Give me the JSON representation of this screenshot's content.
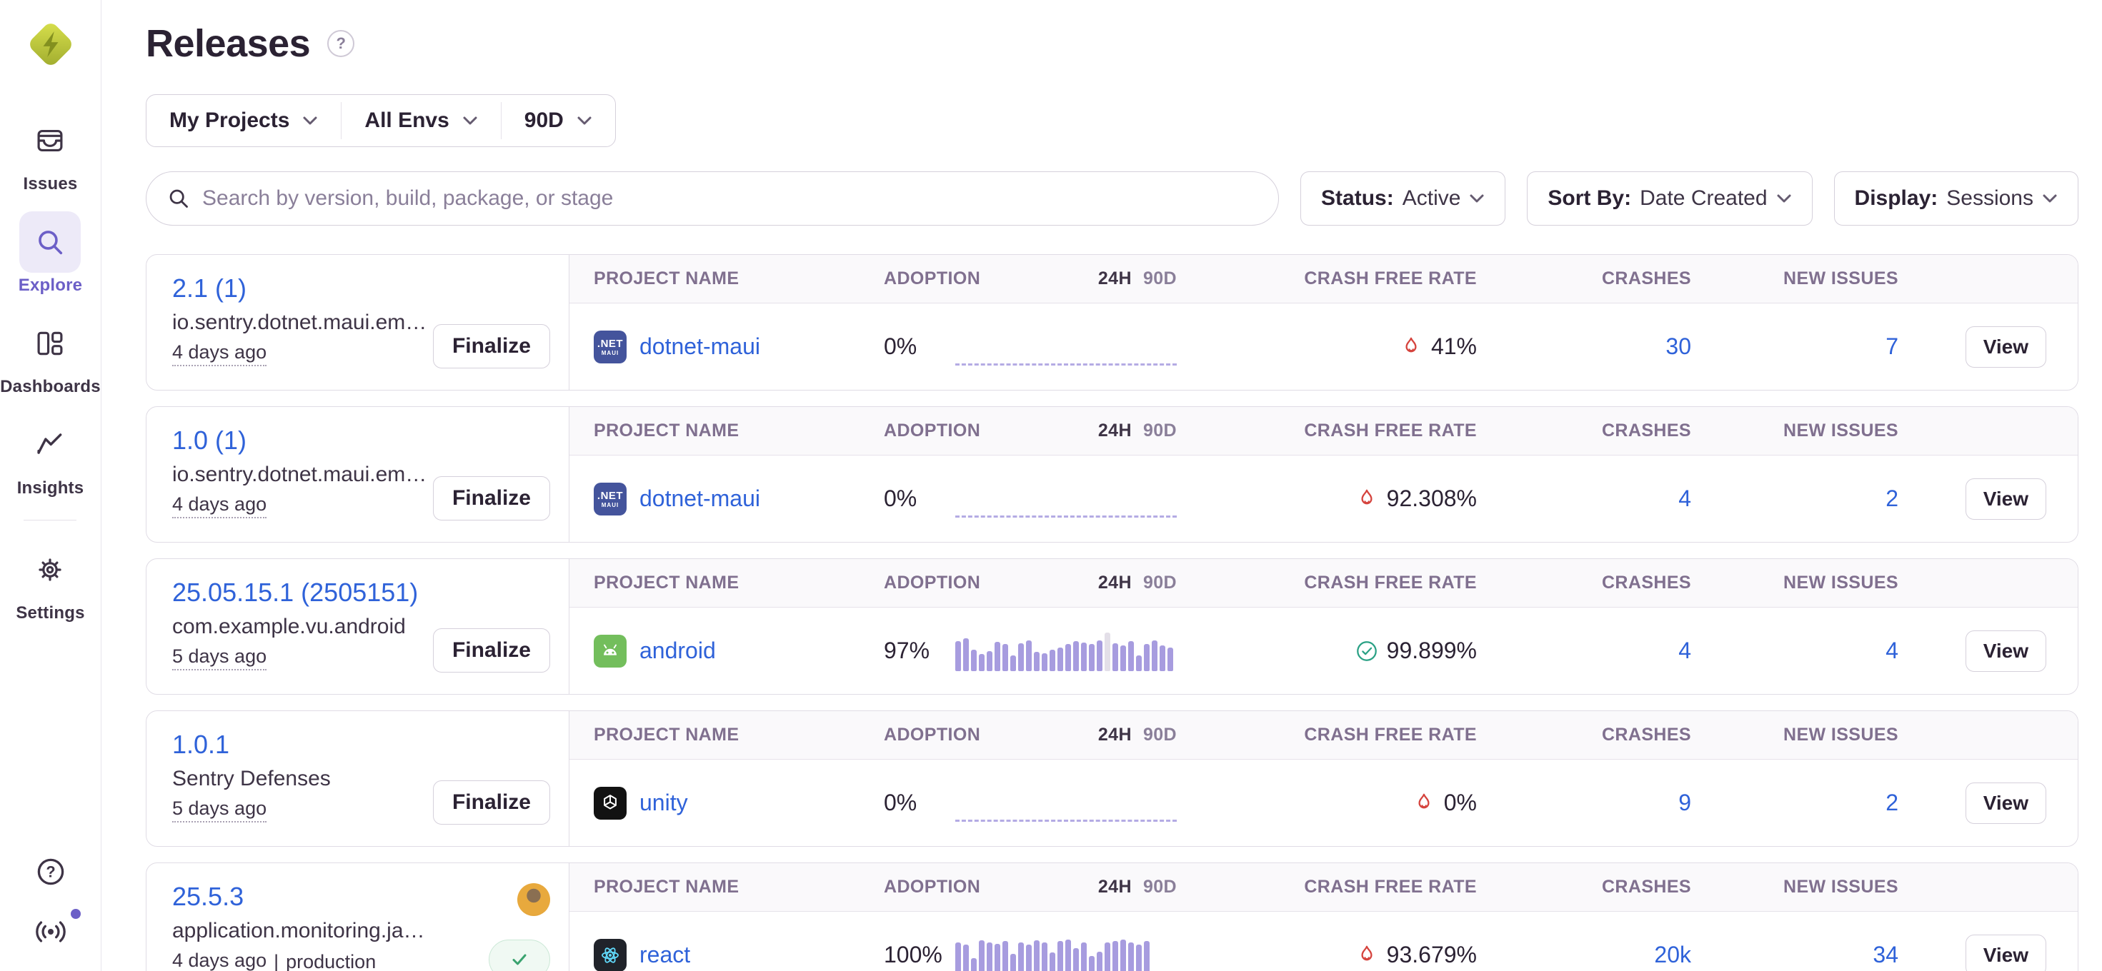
{
  "app": {
    "name": "Sentry"
  },
  "colors": {
    "accent_purple": "#6C5FC7",
    "link_blue": "#2F62D9",
    "fire_red": "#D5433D",
    "success_green": "#2BA185",
    "bar_purple": "#A79CDF",
    "border": "#E0DCE5",
    "header_text": "#80708F",
    "text_primary": "#2B2233"
  },
  "sidebar": {
    "logo_icon": "sentry-logo-icon",
    "items": [
      {
        "label": "Issues",
        "icon": "issues-icon",
        "active": false
      },
      {
        "label": "Explore",
        "icon": "search-icon",
        "active": true
      },
      {
        "label": "Dashboards",
        "icon": "dashboards-icon",
        "active": false
      },
      {
        "label": "Insights",
        "icon": "insights-icon",
        "active": false
      },
      {
        "label": "Settings",
        "icon": "gear-icon",
        "active": false
      }
    ],
    "footer_icons": [
      "help-icon",
      "whats-new-icon"
    ],
    "has_notification_dot": true
  },
  "header": {
    "title": "Releases",
    "help_icon": "question-icon"
  },
  "filters": {
    "project": "My Projects",
    "environment": "All Envs",
    "period": "90D"
  },
  "search": {
    "placeholder": "Search by version, build, package, or stage",
    "icon": "search-icon"
  },
  "controls": {
    "status": {
      "label": "Status:",
      "value": "Active"
    },
    "sort": {
      "label": "Sort By:",
      "value": "Date Created"
    },
    "display": {
      "label": "Display:",
      "value": "Sessions"
    }
  },
  "table": {
    "columns": [
      "PROJECT NAME",
      "ADOPTION",
      "24H",
      "90D",
      "CRASH FREE RATE",
      "CRASHES",
      "NEW ISSUES"
    ]
  },
  "releases": [
    {
      "version": "2.1 (1)",
      "package": "io.sentry.dotnet.maui.em…",
      "created": "4 days ago",
      "environment": null,
      "action_label": "Finalize",
      "finalized": false,
      "has_avatar": false,
      "project": {
        "name": "dotnet-maui",
        "icon": "dotnet-maui-icon"
      },
      "adoption": "0%",
      "adoption_chart": {
        "type": "dashed",
        "bars": [],
        "gray_index": -1
      },
      "crash_free_rate": {
        "value": "41%",
        "indicator": "fire"
      },
      "crashes": "30",
      "new_issues": "7",
      "view_label": "View"
    },
    {
      "version": "1.0 (1)",
      "package": "io.sentry.dotnet.maui.em…",
      "created": "4 days ago",
      "environment": null,
      "action_label": "Finalize",
      "finalized": false,
      "has_avatar": false,
      "project": {
        "name": "dotnet-maui",
        "icon": "dotnet-maui-icon"
      },
      "adoption": "0%",
      "adoption_chart": {
        "type": "dashed",
        "bars": [],
        "gray_index": -1
      },
      "crash_free_rate": {
        "value": "92.308%",
        "indicator": "fire"
      },
      "crashes": "4",
      "new_issues": "2",
      "view_label": "View"
    },
    {
      "version": "25.05.15.1 (2505151)",
      "package": "com.example.vu.android",
      "created": "5 days ago",
      "environment": null,
      "action_label": "Finalize",
      "finalized": false,
      "has_avatar": false,
      "project": {
        "name": "android",
        "icon": "android-icon"
      },
      "adoption": "97%",
      "adoption_chart": {
        "type": "bars",
        "bars": [
          0.78,
          0.85,
          0.55,
          0.45,
          0.52,
          0.75,
          0.7,
          0.4,
          0.72,
          0.8,
          0.5,
          0.46,
          0.56,
          0.62,
          0.7,
          0.78,
          0.74,
          0.7,
          0.8,
          1.0,
          0.72,
          0.66,
          0.78,
          0.4,
          0.7,
          0.8,
          0.66,
          0.62
        ],
        "gray_index": 19
      },
      "crash_free_rate": {
        "value": "99.899%",
        "indicator": "check"
      },
      "crashes": "4",
      "new_issues": "4",
      "view_label": "View"
    },
    {
      "version": "1.0.1",
      "package": "Sentry Defenses",
      "created": "5 days ago",
      "environment": null,
      "action_label": "Finalize",
      "finalized": false,
      "has_avatar": false,
      "project": {
        "name": "unity",
        "icon": "unity-icon"
      },
      "adoption": "0%",
      "adoption_chart": {
        "type": "dashed",
        "bars": [],
        "gray_index": -1
      },
      "crash_free_rate": {
        "value": "0%",
        "indicator": "fire"
      },
      "crashes": "9",
      "new_issues": "2",
      "view_label": "View"
    },
    {
      "version": "25.5.3",
      "package": "application.monitoring.ja…",
      "created": "4 days ago",
      "environment": "production",
      "action_label": null,
      "finalized": true,
      "has_avatar": true,
      "project": {
        "name": "react",
        "icon": "react-icon"
      },
      "adoption": "100%",
      "adoption_chart": {
        "type": "bars",
        "bars": [
          0.85,
          0.8,
          0.45,
          0.9,
          0.85,
          0.82,
          0.88,
          0.55,
          0.85,
          0.8,
          0.9,
          0.85,
          0.6,
          0.88,
          0.92,
          0.7,
          0.85,
          0.5,
          0.62,
          0.85,
          0.88,
          0.92,
          0.86,
          0.8,
          0.88
        ],
        "gray_index": -1
      },
      "crash_free_rate": {
        "value": "93.679%",
        "indicator": "fire"
      },
      "crashes": "20k",
      "new_issues": "34",
      "view_label": "View"
    }
  ]
}
